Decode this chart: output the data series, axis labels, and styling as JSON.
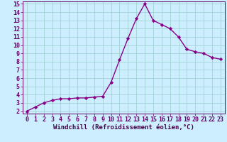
{
  "x": [
    0,
    1,
    2,
    3,
    4,
    5,
    6,
    7,
    8,
    9,
    10,
    11,
    12,
    13,
    14,
    15,
    16,
    17,
    18,
    19,
    20,
    21,
    22,
    23
  ],
  "y": [
    2.0,
    2.5,
    3.0,
    3.3,
    3.5,
    3.5,
    3.6,
    3.6,
    3.7,
    3.8,
    5.5,
    8.2,
    10.8,
    13.2,
    15.0,
    13.0,
    12.5,
    12.0,
    11.0,
    9.5,
    9.2,
    9.0,
    8.5,
    8.3
  ],
  "line_color": "#880088",
  "marker": "D",
  "marker_size": 2.2,
  "bg_color": "#cceeff",
  "grid_color": "#99cccc",
  "xlabel": "Windchill (Refroidissement éolien,°C)",
  "ylim_min": 2,
  "ylim_max": 15,
  "xlim_min": 0,
  "xlim_max": 23,
  "yticks": [
    2,
    3,
    4,
    5,
    6,
    7,
    8,
    9,
    10,
    11,
    12,
    13,
    14,
    15
  ],
  "xticks": [
    0,
    1,
    2,
    3,
    4,
    5,
    6,
    7,
    8,
    9,
    10,
    11,
    12,
    13,
    14,
    15,
    16,
    17,
    18,
    19,
    20,
    21,
    22,
    23
  ],
  "tick_color": "#660066",
  "label_color": "#440044",
  "xlabel_fontsize": 6.5,
  "tick_fontsize": 6.0,
  "linewidth": 1.0
}
